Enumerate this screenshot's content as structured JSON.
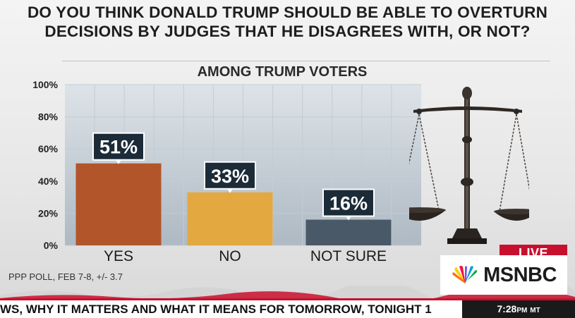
{
  "title_line1": "DO YOU THINK DONALD TRUMP SHOULD BE ABLE TO OVERTURN",
  "title_line2": "DECISIONS BY JUDGES THAT HE DISAGREES WITH, OR NOT?",
  "subtitle": "AMONG TRUMP VOTERS",
  "source": "PPP POLL, FEB 7-8, +/- 3.7",
  "live_badge": "LIVE",
  "network": "MSNBC",
  "ticker_text": "WS, WHY IT MATTERS AND WHAT IT MEANS FOR TOMORROW, TONIGHT 1",
  "clock_time": "7:28",
  "clock_ampm": "PM",
  "clock_zone": "MT",
  "scale_image": "scales-of-justice-icon",
  "colors": {
    "yes": "#b2552a",
    "no": "#e3a83f",
    "not_sure": "#4a5967",
    "label_box": "#1c2b38",
    "live": "#c8102e"
  },
  "chart_data": {
    "type": "bar",
    "categories": [
      "YES",
      "NO",
      "NOT SURE"
    ],
    "values": [
      51,
      33,
      16
    ],
    "data_labels": [
      "51%",
      "33%",
      "16%"
    ],
    "ylim": [
      0,
      100
    ],
    "yticks": [
      "0%",
      "20%",
      "40%",
      "60%",
      "80%",
      "100%"
    ],
    "grid": true
  }
}
